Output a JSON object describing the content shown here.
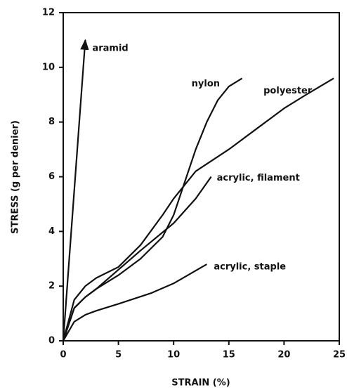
{
  "chart_data": {
    "type": "line",
    "xlabel": "STRAIN (%)",
    "ylabel": "STRESS (g per denier)",
    "xlim": [
      0,
      25
    ],
    "xticks": [
      0,
      5,
      10,
      15,
      20,
      25
    ],
    "ylim": [
      0,
      12
    ],
    "yticks": [
      0,
      2,
      4,
      6,
      8,
      10,
      12
    ],
    "series": [
      {
        "name": "aramid",
        "color": "#111111",
        "arrow": true,
        "x": [
          0,
          2
        ],
        "values": [
          0,
          11
        ]
      },
      {
        "name": "nylon",
        "color": "#111111",
        "x": [
          0,
          1,
          2,
          3,
          5,
          7,
          9,
          10,
          11,
          12,
          13,
          14,
          15,
          16.2
        ],
        "values": [
          0,
          1.2,
          1.6,
          1.9,
          2.4,
          3.0,
          3.8,
          4.6,
          5.8,
          7.0,
          8.0,
          8.8,
          9.3,
          9.6
        ]
      },
      {
        "name": "polyester",
        "color": "#111111",
        "x": [
          0,
          1,
          2,
          3,
          5,
          7,
          9,
          10,
          12,
          15,
          18,
          20,
          22,
          24.5
        ],
        "values": [
          0,
          1.5,
          2.0,
          2.3,
          2.7,
          3.5,
          4.6,
          5.2,
          6.2,
          7.0,
          7.9,
          8.5,
          9.0,
          9.6
        ]
      },
      {
        "name": "acrylic, filament",
        "color": "#111111",
        "x": [
          0,
          1,
          2,
          3,
          5,
          7,
          10,
          12,
          13.4
        ],
        "values": [
          0,
          1.2,
          1.6,
          1.9,
          2.6,
          3.3,
          4.3,
          5.2,
          6.0
        ]
      },
      {
        "name": "acrylic, staple",
        "color": "#111111",
        "x": [
          0,
          1,
          2,
          3,
          5,
          8,
          10,
          13
        ],
        "values": [
          0,
          0.7,
          0.95,
          1.1,
          1.35,
          1.75,
          2.1,
          2.8
        ]
      }
    ]
  }
}
